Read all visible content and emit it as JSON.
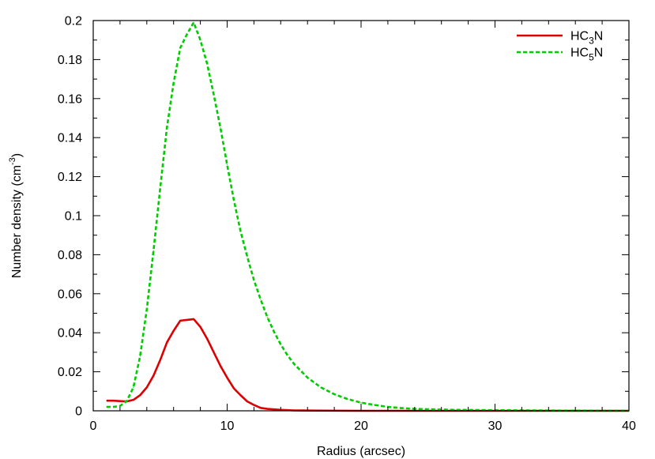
{
  "chart_data": {
    "type": "line",
    "xlabel": "Radius (arcsec)",
    "ylabel": {
      "prefix": "Number density (cm",
      "sup": "-3",
      "suffix": ")"
    },
    "xlim": [
      0,
      40
    ],
    "ylim": [
      0,
      0.2
    ],
    "x_ticks": [
      0,
      10,
      20,
      30,
      40
    ],
    "y_ticks": [
      0,
      0.02,
      0.04,
      0.06,
      0.08,
      0.1,
      0.12,
      0.14,
      0.16,
      0.18,
      0.2
    ],
    "grid": false,
    "legend_position": "top-right",
    "series": [
      {
        "name": "HC3N",
        "legend": {
          "base": "HC",
          "sub": "3",
          "tail": "N"
        },
        "color": "#dd0000",
        "dash": "solid",
        "points": [
          [
            1.0,
            0.0052
          ],
          [
            1.5,
            0.0052
          ],
          [
            2.0,
            0.005
          ],
          [
            2.5,
            0.0048
          ],
          [
            3.0,
            0.0056
          ],
          [
            3.5,
            0.008
          ],
          [
            4.0,
            0.012
          ],
          [
            4.5,
            0.018
          ],
          [
            5.0,
            0.026
          ],
          [
            5.5,
            0.035
          ],
          [
            6.0,
            0.041
          ],
          [
            6.5,
            0.0462
          ],
          [
            7.0,
            0.0466
          ],
          [
            7.5,
            0.047
          ],
          [
            8.0,
            0.043
          ],
          [
            8.5,
            0.037
          ],
          [
            9.0,
            0.03
          ],
          [
            9.5,
            0.023
          ],
          [
            10.0,
            0.017
          ],
          [
            10.5,
            0.0115
          ],
          [
            11.0,
            0.008
          ],
          [
            11.5,
            0.0048
          ],
          [
            12.0,
            0.003
          ],
          [
            12.5,
            0.0015
          ],
          [
            13.0,
            0.001
          ],
          [
            14.0,
            0.0005
          ],
          [
            15.0,
            0.0002
          ],
          [
            17.0,
            0.0001
          ],
          [
            20.0,
            0.0
          ],
          [
            25.0,
            0.0
          ],
          [
            30.0,
            0.0
          ],
          [
            35.0,
            0.0
          ],
          [
            40.0,
            0.0
          ]
        ]
      },
      {
        "name": "HC5N",
        "legend": {
          "base": "HC",
          "sub": "5",
          "tail": "N"
        },
        "color": "#00cc00",
        "dash": "dashed",
        "points": [
          [
            1.0,
            0.002
          ],
          [
            1.5,
            0.002
          ],
          [
            2.0,
            0.0025
          ],
          [
            2.5,
            0.005
          ],
          [
            3.0,
            0.012
          ],
          [
            3.5,
            0.028
          ],
          [
            4.0,
            0.052
          ],
          [
            4.5,
            0.082
          ],
          [
            5.0,
            0.114
          ],
          [
            5.5,
            0.145
          ],
          [
            6.0,
            0.168
          ],
          [
            6.5,
            0.186
          ],
          [
            7.0,
            0.193
          ],
          [
            7.5,
            0.199
          ],
          [
            8.0,
            0.19
          ],
          [
            8.5,
            0.178
          ],
          [
            9.0,
            0.162
          ],
          [
            9.5,
            0.145
          ],
          [
            10.0,
            0.126
          ],
          [
            10.5,
            0.108
          ],
          [
            11.0,
            0.092
          ],
          [
            11.5,
            0.079
          ],
          [
            12.0,
            0.067
          ],
          [
            12.5,
            0.057
          ],
          [
            13.0,
            0.048
          ],
          [
            13.5,
            0.0405
          ],
          [
            14.0,
            0.034
          ],
          [
            14.5,
            0.0285
          ],
          [
            15.0,
            0.024
          ],
          [
            16.0,
            0.017
          ],
          [
            17.0,
            0.012
          ],
          [
            18.0,
            0.0085
          ],
          [
            19.0,
            0.006
          ],
          [
            20.0,
            0.0042
          ],
          [
            21.0,
            0.003
          ],
          [
            22.0,
            0.002
          ],
          [
            23.0,
            0.0014
          ],
          [
            24.0,
            0.001
          ],
          [
            25.0,
            0.0008
          ],
          [
            27.0,
            0.0005
          ],
          [
            30.0,
            0.0003
          ],
          [
            35.0,
            0.0001
          ],
          [
            40.0,
            0.0
          ]
        ]
      }
    ]
  }
}
